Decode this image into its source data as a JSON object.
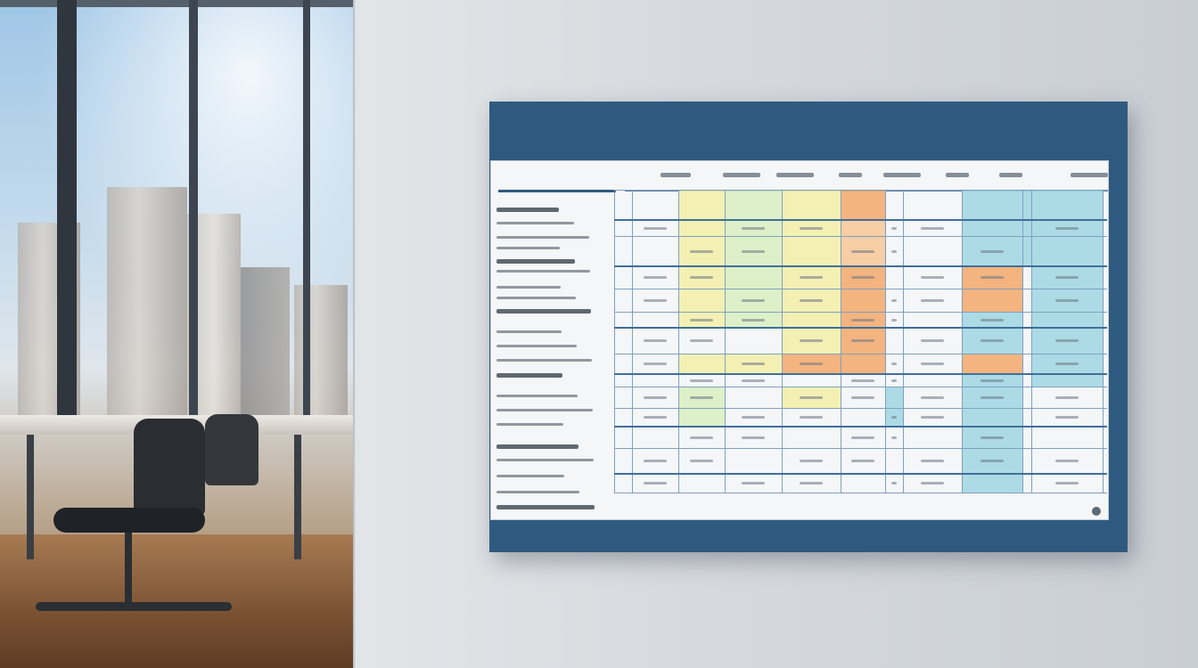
{
  "board": {
    "title": "",
    "subtitle": "",
    "code": "",
    "header_label": ""
  },
  "colors": {
    "board_blue": "#2f5a80",
    "yellow": "#f3efa8",
    "orange": "#f2a86a",
    "light_orange": "#f7c796",
    "teal": "#9fd6e2",
    "green": "#d8efc0"
  }
}
